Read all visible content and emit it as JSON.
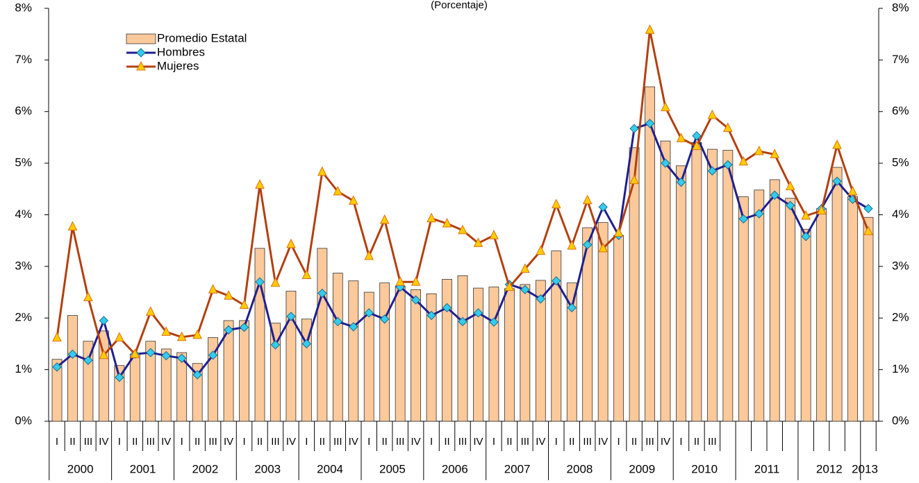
{
  "chart_data": {
    "type": "bar_line",
    "subtitle": "(Porcentaje)",
    "categories": [
      "I",
      "II",
      "III",
      "IV",
      "I",
      "II",
      "III",
      "IV",
      "I",
      "II",
      "III",
      "IV",
      "I",
      "II",
      "III",
      "IV",
      "I",
      "II",
      "III",
      "IV",
      "I",
      "II",
      "III",
      "IV",
      "I",
      "II",
      "III",
      "IV",
      "I",
      "II",
      "III",
      "IV",
      "I",
      "II",
      "III",
      "IV",
      "I",
      "II",
      "III",
      "IV",
      "I",
      "II",
      "III",
      null,
      null,
      null,
      null,
      null,
      null,
      null,
      null,
      null,
      null
    ],
    "years": [
      "2000",
      "2001",
      "2002",
      "2003",
      "2004",
      "2005",
      "2006",
      "2007",
      "2008",
      "2009",
      "2010",
      "2011",
      "2012",
      "2013"
    ],
    "series": [
      {
        "name": "Promedio Estatal",
        "kind": "bar",
        "color": "#fcc99b",
        "values": [
          1.2,
          2.05,
          1.55,
          1.75,
          1.08,
          1.3,
          1.55,
          1.4,
          1.33,
          1.12,
          1.62,
          1.95,
          1.95,
          3.35,
          1.9,
          2.52,
          1.98,
          3.35,
          2.87,
          2.72,
          2.5,
          2.68,
          2.62,
          2.55,
          2.47,
          2.75,
          2.82,
          2.58,
          2.6,
          2.57,
          2.65,
          2.73,
          3.3,
          2.68,
          3.75,
          3.85,
          3.6,
          5.3,
          6.48,
          5.43,
          4.95,
          5.4,
          5.27,
          5.25,
          4.35,
          4.48,
          4.68,
          4.32,
          3.72,
          4.12,
          4.92,
          4.35,
          3.95
        ]
      },
      {
        "name": "Hombres",
        "kind": "line",
        "marker": "diamond",
        "color": "#1f1f8f",
        "marker_color": "#33ccee",
        "values": [
          1.05,
          1.3,
          1.18,
          1.95,
          0.85,
          1.3,
          1.33,
          1.27,
          1.22,
          0.9,
          1.28,
          1.77,
          1.82,
          2.7,
          1.48,
          2.03,
          1.5,
          2.48,
          1.93,
          1.83,
          2.1,
          1.98,
          2.6,
          2.35,
          2.05,
          2.2,
          1.93,
          2.1,
          1.92,
          2.65,
          2.55,
          2.37,
          2.72,
          2.2,
          3.42,
          4.15,
          3.6,
          5.67,
          5.77,
          5.0,
          4.63,
          5.53,
          4.85,
          4.97,
          3.92,
          4.02,
          4.38,
          4.18,
          3.58,
          4.12,
          4.65,
          4.3,
          4.12
        ]
      },
      {
        "name": "Mujeres",
        "kind": "line",
        "marker": "triangle",
        "color": "#b2400f",
        "marker_color": "#ffcc00",
        "values": [
          1.62,
          3.77,
          2.4,
          1.28,
          1.62,
          1.3,
          2.12,
          1.73,
          1.63,
          1.67,
          2.55,
          2.43,
          2.25,
          4.58,
          2.68,
          3.43,
          2.83,
          4.83,
          4.45,
          4.27,
          3.2,
          3.9,
          2.7,
          2.7,
          3.93,
          3.83,
          3.7,
          3.45,
          3.6,
          2.6,
          2.95,
          3.3,
          4.2,
          3.4,
          4.28,
          3.35,
          3.65,
          4.67,
          7.58,
          6.08,
          5.48,
          5.33,
          5.93,
          5.68,
          5.03,
          5.23,
          5.17,
          4.55,
          3.98,
          4.08,
          5.35,
          4.45,
          3.68
        ]
      }
    ],
    "ylim": [
      0,
      8
    ],
    "yticks": [
      {
        "value": 0,
        "label": "0%"
      },
      {
        "value": 1,
        "label": "1%"
      },
      {
        "value": 2,
        "label": "2%"
      },
      {
        "value": 3,
        "label": "3%"
      },
      {
        "value": 4,
        "label": "4%"
      },
      {
        "value": 5,
        "label": "5%"
      },
      {
        "value": 6,
        "label": "6%"
      },
      {
        "value": 7,
        "label": "7%"
      },
      {
        "value": 8,
        "label": "8%"
      }
    ],
    "y2lim": [
      0,
      8
    ],
    "y2ticks": [
      {
        "value": 0,
        "label": "0%"
      },
      {
        "value": 1,
        "label": "1%"
      },
      {
        "value": 2,
        "label": "2%"
      },
      {
        "value": 3,
        "label": "3%"
      },
      {
        "value": 4,
        "label": "4%"
      },
      {
        "value": 5,
        "label": "5%"
      },
      {
        "value": 6,
        "label": "6%"
      },
      {
        "value": 7,
        "label": "7%"
      },
      {
        "value": 8,
        "label": "8%"
      }
    ],
    "grid": false,
    "legend": "upper-left"
  }
}
